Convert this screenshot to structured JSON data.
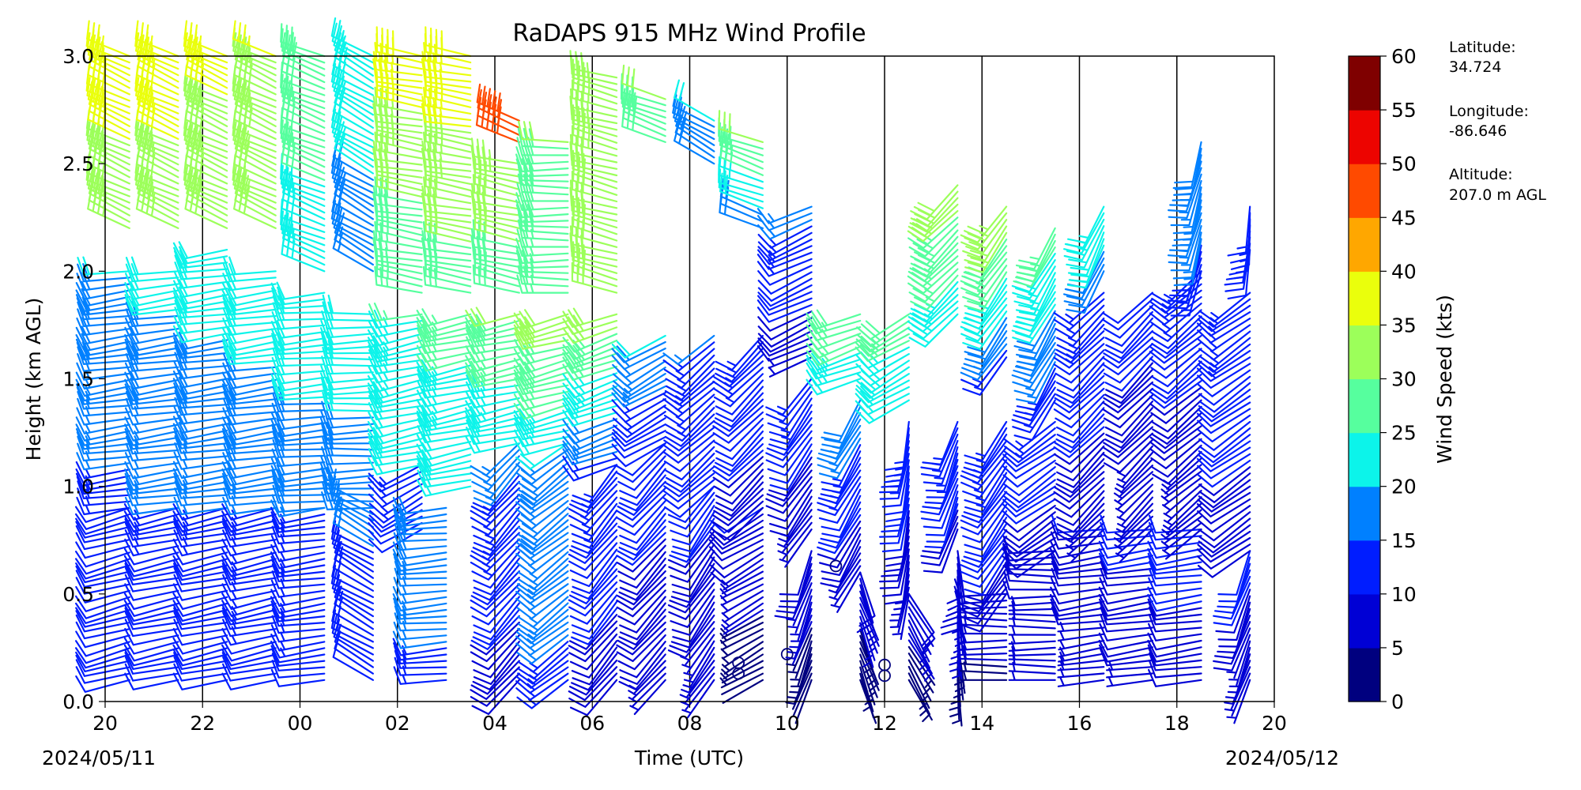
{
  "chart_data": {
    "type": "wind_barb_profile",
    "title": "RaDAPS 915 MHz Wind Profile",
    "xlabel": "Time (UTC)",
    "ylabel": "Height (km AGL)",
    "x_start_date": "2024/05/11",
    "x_end_date": "2024/05/12",
    "x_ticks": [
      "20",
      "22",
      "00",
      "02",
      "04",
      "06",
      "08",
      "10",
      "12",
      "14",
      "16",
      "18",
      "20"
    ],
    "y_ticks": [
      "0.0",
      "0.5",
      "1.0",
      "1.5",
      "2.0",
      "2.5",
      "3.0"
    ],
    "ylim": [
      0,
      3
    ],
    "colorbar": {
      "label": "Wind Speed (kts)",
      "ticks": [
        "0",
        "5",
        "10",
        "15",
        "20",
        "25",
        "30",
        "35",
        "40",
        "45",
        "50",
        "55",
        "60"
      ],
      "colors": [
        "#00007f",
        "#0000d5",
        "#001dff",
        "#0080ff",
        "#0cf4ea",
        "#56ff9e",
        "#9cff5a",
        "#eaff0c",
        "#ffa700",
        "#ff4a00",
        "#ed0400",
        "#7f0000"
      ]
    },
    "station_info": {
      "latitude_label": "Latitude:",
      "latitude": "34.724",
      "longitude_label": "Longitude:",
      "longitude": "-86.646",
      "altitude_label": "Altitude:",
      "altitude": "207.0 m AGL"
    },
    "profiles": [
      {
        "time": "20:30",
        "segments": [
          {
            "from": 0.1,
            "to": 0.9,
            "dir": 255,
            "spd": [
              11,
              12
            ]
          },
          {
            "from": 0.9,
            "to": 2.0,
            "dir": 262,
            "spd": [
              14,
              20
            ]
          },
          {
            "from": 2.2,
            "to": 3.0,
            "dir": 295,
            "spd": [
              33,
              37
            ]
          }
        ]
      },
      {
        "time": "21:30",
        "segments": [
          {
            "from": 0.1,
            "to": 0.9,
            "dir": 258,
            "spd": [
              11,
              13
            ]
          },
          {
            "from": 0.9,
            "to": 2.0,
            "dir": 262,
            "spd": [
              15,
              21
            ]
          },
          {
            "from": 2.2,
            "to": 3.0,
            "dir": 295,
            "spd": [
              33,
              37
            ]
          }
        ]
      },
      {
        "time": "22:30",
        "segments": [
          {
            "from": 0.1,
            "to": 0.9,
            "dir": 258,
            "spd": [
              11,
              13
            ]
          },
          {
            "from": 0.9,
            "to": 2.1,
            "dir": 262,
            "spd": [
              16,
              22
            ]
          },
          {
            "from": 2.2,
            "to": 3.0,
            "dir": 295,
            "spd": [
              32,
              36
            ]
          }
        ]
      },
      {
        "time": "23:30",
        "segments": [
          {
            "from": 0.1,
            "to": 0.9,
            "dir": 258,
            "spd": [
              12,
              14
            ]
          },
          {
            "from": 0.9,
            "to": 2.0,
            "dir": 262,
            "spd": [
              17,
              22
            ]
          },
          {
            "from": 2.2,
            "to": 3.0,
            "dir": 295,
            "spd": [
              30,
              35
            ]
          }
        ]
      },
      {
        "time": "00:30",
        "segments": [
          {
            "from": 0.1,
            "to": 0.9,
            "dir": 262,
            "spd": [
              12,
              15
            ]
          },
          {
            "from": 0.9,
            "to": 1.9,
            "dir": 265,
            "spd": [
              18,
              22
            ]
          },
          {
            "from": 2.0,
            "to": 3.0,
            "dir": 292,
            "spd": [
              23,
              28
            ]
          }
        ]
      },
      {
        "time": "01:30",
        "segments": [
          {
            "from": 0.1,
            "to": 0.9,
            "dir": 300,
            "spd": [
              12,
              16
            ]
          },
          {
            "from": 0.9,
            "to": 1.8,
            "dir": 268,
            "spd": [
              18,
              22
            ]
          },
          {
            "from": 2.0,
            "to": 3.0,
            "dir": 300,
            "spd": [
              17,
              24
            ]
          }
        ]
      },
      {
        "time": "02:30",
        "segments": [
          {
            "from": 0.8,
            "to": 1.1,
            "dir": 240,
            "spd": [
              11,
              14
            ]
          },
          {
            "from": 1.1,
            "to": 1.8,
            "dir": 258,
            "spd": [
              20,
              25
            ]
          },
          {
            "from": 1.9,
            "to": 3.0,
            "dir": 280,
            "spd": [
              25,
              38
            ]
          }
        ]
      },
      {
        "time": "03:00",
        "segments": [
          {
            "from": 0.1,
            "to": 0.9,
            "dir": 265,
            "spd": [
              14,
              19
            ]
          }
        ]
      },
      {
        "time": "03:30",
        "segments": [
          {
            "from": 1.0,
            "to": 1.8,
            "dir": 258,
            "spd": [
              20,
              27
            ]
          },
          {
            "from": 1.9,
            "to": 3.0,
            "dir": 280,
            "spd": [
              28,
              38
            ]
          }
        ]
      },
      {
        "time": "04:30",
        "segments": [
          {
            "from": 0.1,
            "to": 1.2,
            "dir": 222,
            "spd": [
              8,
              16
            ]
          },
          {
            "from": 1.2,
            "to": 1.8,
            "dir": 258,
            "spd": [
              20,
              30
            ]
          },
          {
            "from": 1.9,
            "to": 2.5,
            "dir": 282,
            "spd": [
              28,
              33
            ]
          },
          {
            "from": 2.6,
            "to": 2.7,
            "dir": 292,
            "spd": [
              48,
              48
            ]
          }
        ]
      },
      {
        "time": "05:30",
        "segments": [
          {
            "from": 0.1,
            "to": 1.2,
            "dir": 232,
            "spd": [
              14,
              20
            ]
          },
          {
            "from": 1.2,
            "to": 1.8,
            "dir": 255,
            "spd": [
              22,
              32
            ]
          },
          {
            "from": 1.9,
            "to": 2.6,
            "dir": 270,
            "spd": [
              26,
              30
            ]
          }
        ]
      },
      {
        "time": "06:30",
        "segments": [
          {
            "from": 0.1,
            "to": 1.1,
            "dir": 220,
            "spd": [
              8,
              14
            ]
          },
          {
            "from": 1.1,
            "to": 1.8,
            "dir": 250,
            "spd": [
              14,
              32
            ]
          },
          {
            "from": 1.9,
            "to": 2.9,
            "dir": 285,
            "spd": [
              30,
              34
            ]
          }
        ]
      },
      {
        "time": "07:30",
        "segments": [
          {
            "from": 0.1,
            "to": 1.2,
            "dir": 222,
            "spd": [
              7,
              12
            ]
          },
          {
            "from": 1.2,
            "to": 1.7,
            "dir": 240,
            "spd": [
              10,
              20
            ]
          },
          {
            "from": 2.6,
            "to": 2.8,
            "dir": 290,
            "spd": [
              28,
              30
            ]
          }
        ]
      },
      {
        "time": "08:30",
        "segments": [
          {
            "from": 0.1,
            "to": 1.0,
            "dir": 215,
            "spd": [
              6,
              11
            ]
          },
          {
            "from": 1.0,
            "to": 1.7,
            "dir": 228,
            "spd": [
              10,
              15
            ]
          },
          {
            "from": 2.5,
            "to": 2.7,
            "dir": 300,
            "spd": [
              18,
              20
            ]
          }
        ]
      },
      {
        "time": "09:30",
        "segments": [
          {
            "from": 0.1,
            "to": 0.9,
            "dir": 240,
            "spd": [
              2,
              10
            ]
          },
          {
            "from": 0.9,
            "to": 1.7,
            "dir": 225,
            "spd": [
              8,
              14
            ]
          },
          {
            "from": 2.2,
            "to": 2.6,
            "dir": 290,
            "spd": [
              17,
              30
            ]
          }
        ]
      },
      {
        "time": "10:30",
        "segments": [
          {
            "from": 0.1,
            "to": 0.7,
            "dir": 200,
            "spd": [
              2,
              9
            ]
          },
          {
            "from": 0.8,
            "to": 1.5,
            "dir": 215,
            "spd": [
              6,
              14
            ]
          },
          {
            "from": 1.6,
            "to": 2.3,
            "dir": 245,
            "spd": [
              7,
              16
            ]
          }
        ]
      },
      {
        "time": "11:30",
        "segments": [
          {
            "from": 0.1,
            "to": 0.6,
            "dir": 160,
            "spd": [
              2,
              8
            ]
          },
          {
            "from": 0.6,
            "to": 1.4,
            "dir": 210,
            "spd": [
              6,
              18
            ]
          },
          {
            "from": 1.5,
            "to": 1.8,
            "dir": 250,
            "spd": [
              22,
              28
            ]
          }
        ]
      },
      {
        "time": "12:30",
        "segments": [
          {
            "from": 0.1,
            "to": 0.5,
            "dir": 150,
            "spd": [
              3,
              8
            ]
          },
          {
            "from": 0.5,
            "to": 1.3,
            "dir": 190,
            "spd": [
              6,
              14
            ]
          },
          {
            "from": 1.4,
            "to": 1.8,
            "dir": 240,
            "spd": [
              20,
              28
            ]
          }
        ]
      },
      {
        "time": "13:30",
        "segments": [
          {
            "from": 0.1,
            "to": 0.7,
            "dir": 175,
            "spd": [
              3,
              9
            ]
          },
          {
            "from": 0.8,
            "to": 1.3,
            "dir": 200,
            "spd": [
              9,
              14
            ]
          },
          {
            "from": 1.8,
            "to": 2.4,
            "dir": 225,
            "spd": [
              22,
              32
            ]
          }
        ]
      },
      {
        "time": "14:30",
        "segments": [
          {
            "from": 0.1,
            "to": 0.5,
            "dir": 270,
            "spd": [
              4,
              9
            ]
          },
          {
            "from": 0.5,
            "to": 1.3,
            "dir": 215,
            "spd": [
              9,
              14
            ]
          },
          {
            "from": 1.6,
            "to": 2.3,
            "dir": 215,
            "spd": [
              14,
              34
            ]
          }
        ]
      },
      {
        "time": "15:30",
        "segments": [
          {
            "from": 0.1,
            "to": 0.7,
            "dir": 270,
            "spd": [
              5,
              9
            ]
          },
          {
            "from": 0.7,
            "to": 1.3,
            "dir": 235,
            "spd": [
              8,
              13
            ]
          },
          {
            "from": 1.4,
            "to": 2.2,
            "dir": 210,
            "spd": [
              12,
              27
            ]
          }
        ]
      },
      {
        "time": "16:30",
        "segments": [
          {
            "from": 0.1,
            "to": 0.8,
            "dir": 262,
            "spd": [
              6,
              10
            ]
          },
          {
            "from": 0.8,
            "to": 1.9,
            "dir": 225,
            "spd": [
              7,
              14
            ]
          },
          {
            "from": 2.0,
            "to": 2.3,
            "dir": 205,
            "spd": [
              18,
              24
            ]
          }
        ]
      },
      {
        "time": "17:30",
        "segments": [
          {
            "from": 0.1,
            "to": 0.8,
            "dir": 262,
            "spd": [
              7,
              11
            ]
          },
          {
            "from": 0.8,
            "to": 1.9,
            "dir": 225,
            "spd": [
              5,
              12
            ]
          }
        ]
      },
      {
        "time": "18:30",
        "segments": [
          {
            "from": 0.1,
            "to": 0.8,
            "dir": 262,
            "spd": [
              8,
              12
            ]
          },
          {
            "from": 0.8,
            "to": 2.0,
            "dir": 230,
            "spd": [
              5,
              14
            ]
          },
          {
            "from": 2.0,
            "to": 2.6,
            "dir": 195,
            "spd": [
              14,
              18
            ]
          }
        ]
      },
      {
        "time": "19:30",
        "segments": [
          {
            "from": 0.1,
            "to": 0.7,
            "dir": 200,
            "spd": [
              5,
              12
            ]
          },
          {
            "from": 0.7,
            "to": 1.9,
            "dir": 235,
            "spd": [
              8,
              14
            ]
          },
          {
            "from": 2.1,
            "to": 2.3,
            "dir": 185,
            "spd": [
              12,
              14
            ]
          }
        ]
      }
    ],
    "calm_markers": [
      {
        "time": "09:00",
        "height": 0.18
      },
      {
        "time": "09:00",
        "height": 0.13
      },
      {
        "time": "10:00",
        "height": 0.22
      },
      {
        "time": "11:00",
        "height": 0.63
      },
      {
        "time": "12:00",
        "height": 0.17
      },
      {
        "time": "12:00",
        "height": 0.12
      }
    ]
  }
}
